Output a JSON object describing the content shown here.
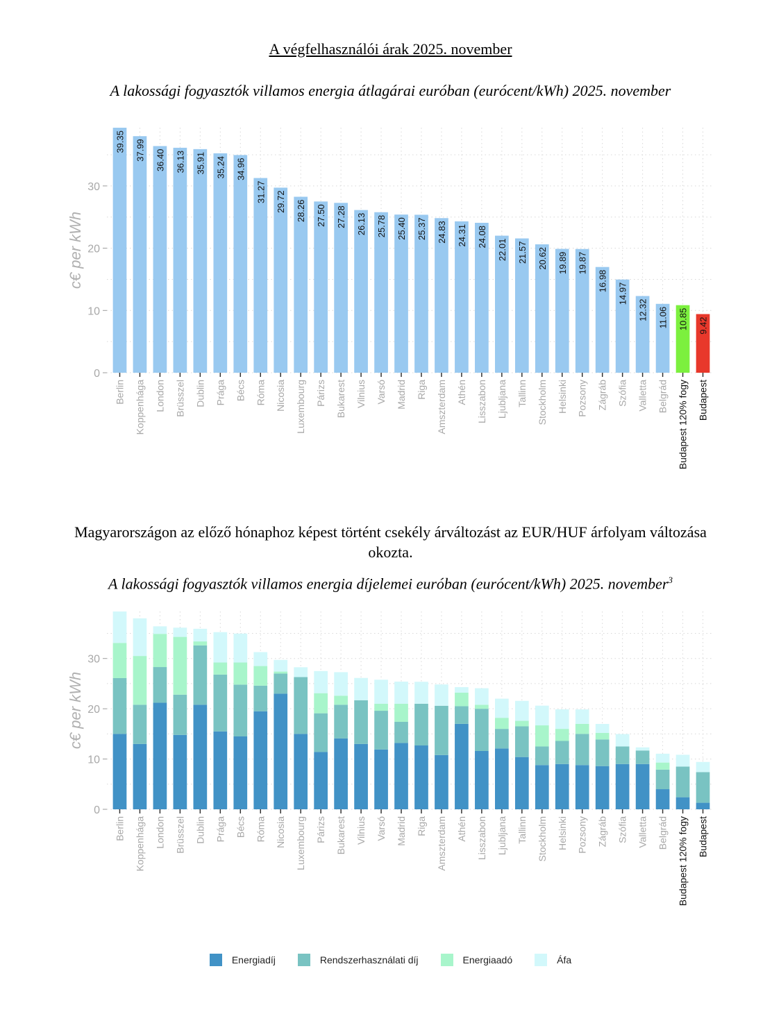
{
  "page_title": "A végfelhasználói árak 2025. november",
  "paragraph_line1": "Magyarországon az előző hónaphoz képest történt csekély árváltozást az EUR/HUF árfolyam változása",
  "paragraph_line2": "okozta.",
  "chart_data": [
    {
      "type": "bar",
      "title": "A lakossági fogyasztók villamos energia átlagárai euróban (eurócent/kWh) 2025. november",
      "xlabel": "",
      "ylabel": "c€ per kWh",
      "ylim": [
        0,
        39.35
      ],
      "yticks": [
        0,
        10,
        20,
        30
      ],
      "grid": true,
      "categories": [
        "Berlin",
        "Koppenhága",
        "London",
        "Brüsszel",
        "Dublin",
        "Prága",
        "Bécs",
        "Róma",
        "Nicosia",
        "Luxembourg",
        "Párizs",
        "Bukarest",
        "Vilnius",
        "Varsó",
        "Madrid",
        "Riga",
        "Amszterdam",
        "Athén",
        "Lisszabon",
        "Ljubljana",
        "Tallinn",
        "Stockholm",
        "Helsinki",
        "Pozsony",
        "Zágráb",
        "Szófia",
        "Valletta",
        "Belgrád",
        "Budapest 120% fogy",
        "Budapest"
      ],
      "values": [
        39.35,
        37.99,
        36.4,
        36.13,
        35.91,
        35.24,
        34.96,
        31.27,
        29.72,
        28.26,
        27.5,
        27.28,
        26.13,
        25.78,
        25.4,
        25.37,
        24.83,
        24.31,
        24.08,
        22.01,
        21.57,
        20.62,
        19.89,
        19.87,
        16.98,
        14.97,
        12.32,
        11.06,
        10.85,
        9.42
      ],
      "data_labels": [
        "39.35",
        "37.99",
        "36.40",
        "36.13",
        "35.91",
        "35.24",
        "34.96",
        "31.27",
        "29.72",
        "28.26",
        "27.50",
        "27.28",
        "26.13",
        "25.78",
        "25.40",
        "25.37",
        "24.83",
        "24.31",
        "24.08",
        "22.01",
        "21.57",
        "20.62",
        "19.89",
        "19.87",
        "16.98",
        "14.97",
        "12.32",
        "11.06",
        "10.85",
        "9.42"
      ],
      "colors": {
        "default": "#99c9f0",
        "Budapest 120% fogy": "#7cf03e",
        "Budapest": "#e8382b"
      },
      "highlight_labels": [
        "Budapest 120% fogy",
        "Budapest"
      ]
    },
    {
      "type": "bar",
      "stacked": true,
      "title": "A lakossági fogyasztók villamos energia díjelemei euróban (eurócent/kWh) 2025. november",
      "title_footnote": "3",
      "xlabel": "",
      "ylabel": "c€ per kWh",
      "ylim": [
        0,
        39.35
      ],
      "yticks": [
        0,
        10,
        20,
        30
      ],
      "grid": true,
      "legend_position": "bottom",
      "categories": [
        "Berlin",
        "Koppenhága",
        "London",
        "Brüsszel",
        "Dublin",
        "Prága",
        "Bécs",
        "Róma",
        "Nicosia",
        "Luxembourg",
        "Párizs",
        "Bukarest",
        "Vilnius",
        "Varsó",
        "Madrid",
        "Riga",
        "Amszterdam",
        "Athén",
        "Lisszabon",
        "Ljubljana",
        "Tallinn",
        "Stockholm",
        "Helsinki",
        "Pozsony",
        "Zágráb",
        "Szófia",
        "Valletta",
        "Belgrád",
        "Budapest 120% fogy",
        "Budapest"
      ],
      "series": [
        {
          "name": "Energiadíj",
          "color": "#4192c6",
          "values": [
            15.0,
            13.0,
            21.2,
            14.8,
            20.8,
            15.5,
            14.5,
            19.5,
            23.0,
            15.0,
            11.4,
            14.1,
            13.0,
            11.9,
            13.2,
            12.7,
            10.8,
            17.0,
            11.6,
            12.1,
            10.4,
            8.8,
            9.0,
            8.8,
            8.6,
            9.0,
            9.0,
            4.0,
            2.4,
            1.3
          ]
        },
        {
          "name": "Rendszerhasználati díj",
          "color": "#79c3c2",
          "values": [
            11.1,
            7.8,
            7.1,
            8.0,
            11.8,
            11.3,
            10.3,
            5.1,
            4.0,
            11.3,
            7.7,
            6.7,
            8.7,
            7.7,
            4.2,
            8.3,
            9.8,
            3.5,
            8.4,
            3.9,
            6.1,
            3.7,
            4.6,
            6.2,
            5.3,
            3.5,
            2.7,
            3.9,
            6.1,
            6.1
          ]
        },
        {
          "name": "Energiaadó",
          "color": "#a8f5cb",
          "values": [
            7.0,
            9.7,
            6.6,
            11.5,
            0.8,
            2.4,
            4.4,
            3.9,
            0.4,
            0.0,
            4.0,
            1.8,
            0.0,
            1.4,
            3.6,
            0.0,
            0.0,
            2.7,
            0.8,
            2.2,
            1.1,
            4.2,
            2.4,
            2.0,
            1.3,
            0.0,
            0.0,
            1.4,
            0.0,
            0.0
          ]
        },
        {
          "name": "Áfa",
          "color": "#d2f8fb",
          "values": [
            6.25,
            7.49,
            1.5,
            1.83,
            2.51,
            6.04,
            5.76,
            2.77,
            2.32,
            1.96,
            4.4,
            4.68,
            4.43,
            4.78,
            4.4,
            4.37,
            4.23,
            1.11,
            3.28,
            3.81,
            3.97,
            3.92,
            3.89,
            2.87,
            1.78,
            2.47,
            0.62,
            1.76,
            2.35,
            2.02
          ]
        }
      ],
      "highlight_labels": [
        "Budapest 120% fogy",
        "Budapest"
      ]
    }
  ]
}
